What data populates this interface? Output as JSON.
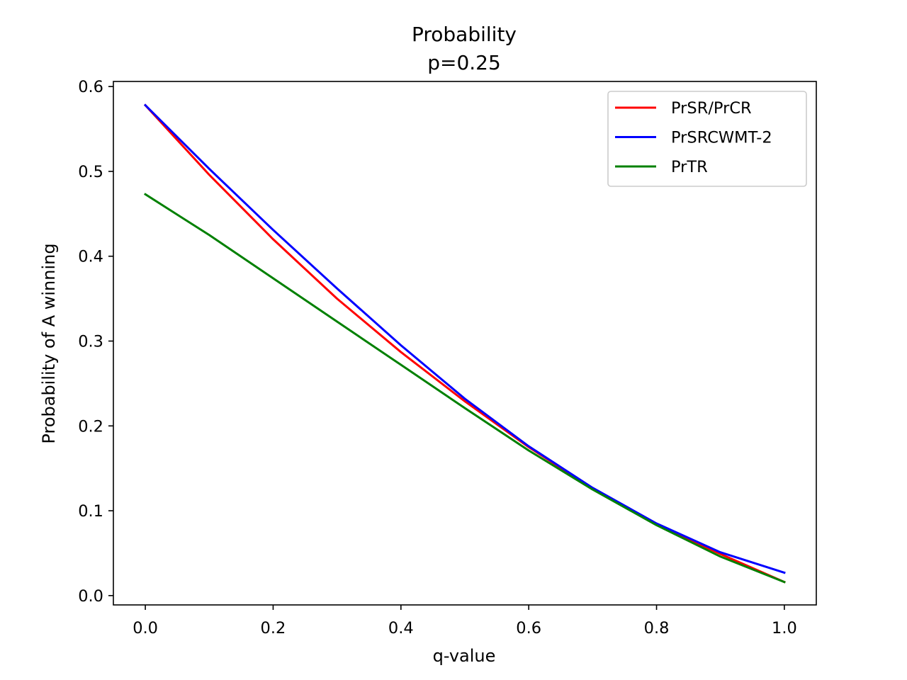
{
  "chart_data": {
    "type": "line",
    "title": "Probability",
    "subtitle": "p=0.25",
    "xlabel": "q-value",
    "ylabel": "Probability of A winning",
    "xlim": [
      -0.05,
      1.05
    ],
    "ylim": [
      -0.011,
      0.606
    ],
    "xticks": [
      0.0,
      0.2,
      0.4,
      0.6,
      0.8,
      1.0
    ],
    "xtick_labels": [
      "0.0",
      "0.2",
      "0.4",
      "0.6",
      "0.8",
      "1.0"
    ],
    "yticks": [
      0.0,
      0.1,
      0.2,
      0.3,
      0.4,
      0.5,
      0.6
    ],
    "ytick_labels": [
      "0.0",
      "0.1",
      "0.2",
      "0.3",
      "0.4",
      "0.5",
      "0.6"
    ],
    "grid": false,
    "legend_position": "top-right",
    "x": [
      0.0,
      0.1,
      0.2,
      0.3,
      0.4,
      0.5,
      0.6,
      0.7,
      0.8,
      0.9,
      1.0
    ],
    "series": [
      {
        "name": "PrSR/PrCR",
        "color": "#ff0000",
        "values": [
          0.578,
          0.496,
          0.42,
          0.35,
          0.287,
          0.229,
          0.175,
          0.126,
          0.084,
          0.049,
          0.016
        ]
      },
      {
        "name": "PrSRCWMT-2",
        "color": "#0000ff",
        "values": [
          0.578,
          0.503,
          0.431,
          0.362,
          0.295,
          0.232,
          0.176,
          0.127,
          0.085,
          0.051,
          0.027
        ]
      },
      {
        "name": "PrTR",
        "color": "#008000",
        "values": [
          0.473,
          0.425,
          0.374,
          0.323,
          0.272,
          0.221,
          0.171,
          0.125,
          0.083,
          0.046,
          0.016
        ]
      }
    ]
  }
}
